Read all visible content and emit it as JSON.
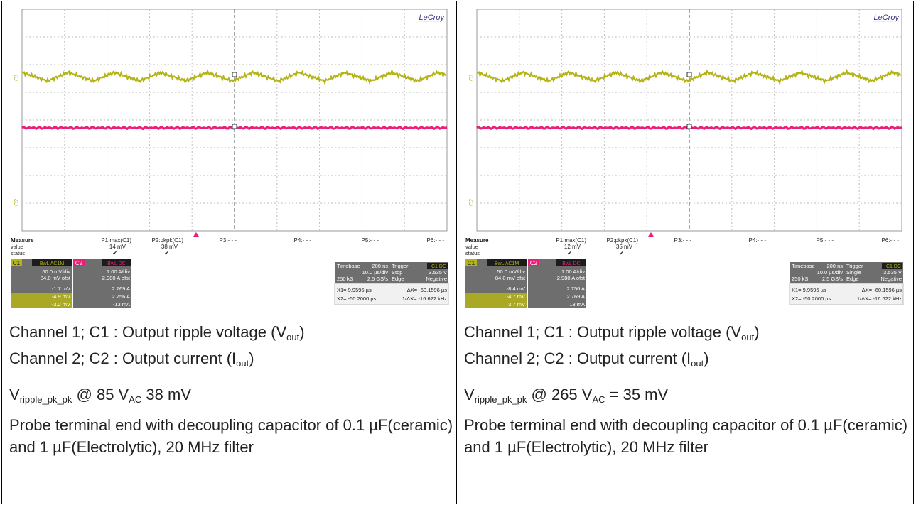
{
  "colors": {
    "ch1_trace": "#b4b419",
    "ch2_trace": "#e8207a",
    "grid": "#bdbdbd",
    "panel_dark": "#3c3c3c",
    "panel_mid": "#6e6e6e"
  },
  "scopes": [
    {
      "brand": "LeCroy",
      "measure": {
        "header": "Measure",
        "rows": [
          "value",
          "status"
        ],
        "params": [
          {
            "label": "P1:max(C1)",
            "value": "14 mV",
            "status": "✔"
          },
          {
            "label": "P2:pkpk(C1)",
            "value": "38 mV",
            "status": "✔"
          },
          {
            "label": "P3:- - -",
            "value": "",
            "status": ""
          },
          {
            "label": "P4:- - -",
            "value": "",
            "status": ""
          },
          {
            "label": "P5:- - -",
            "value": "",
            "status": ""
          },
          {
            "label": "P6:- - -",
            "value": "",
            "status": ""
          }
        ]
      },
      "c1": {
        "tag": "C1",
        "mode": "BwL AC1M",
        "vdiv": "50.0 mV/div",
        "ofst": "84.0 mV ofst",
        "v1": "-1.7 mV",
        "v2": "-4.9 mV",
        "dy": "-3.2 mV"
      },
      "c2": {
        "tag": "C2",
        "mode": "BwL DC",
        "vdiv": "1.00 A/div",
        "ofst": "-2.980 A ofst",
        "v1": "2.769 A",
        "v2": "2.756 A",
        "dy": "-13 mA"
      },
      "timebase": {
        "label": "Timebase",
        "value": "200 ns",
        "tdiv": "10.0 µs/div",
        "samples": "250 kS",
        "rate": "2.5 GS/s"
      },
      "trigger": {
        "label": "Trigger",
        "src": "C1 DC",
        "mode": "Stop",
        "level": "3.535 V",
        "type": "Edge",
        "slope": "Negative"
      },
      "cursors": {
        "x1": "X1=   9.9596 µs",
        "x2": "X2=  -50.2000 µs",
        "dx": "ΔX=  -60.1596 µs",
        "inv": "1/ΔX=  -16.622 kHz"
      }
    },
    {
      "brand": "LeCroy",
      "measure": {
        "header": "Measure",
        "rows": [
          "value",
          "status"
        ],
        "params": [
          {
            "label": "P1:max(C1)",
            "value": "12 mV",
            "status": "✔"
          },
          {
            "label": "P2:pkpk(C1)",
            "value": "35 mV",
            "status": "✔"
          },
          {
            "label": "P3:- - -",
            "value": "",
            "status": ""
          },
          {
            "label": "P4:- - -",
            "value": "",
            "status": ""
          },
          {
            "label": "P5:- - -",
            "value": "",
            "status": ""
          },
          {
            "label": "P6:- - -",
            "value": "",
            "status": ""
          }
        ]
      },
      "c1": {
        "tag": "C1",
        "mode": "BwL AC1M",
        "vdiv": "50.0 mV/div",
        "ofst": "84.0 mV ofst",
        "v1": "-8.4 mV",
        "v2": "-4.7 mV",
        "dy": "3.7 mV"
      },
      "c2": {
        "tag": "C2",
        "mode": "BwL DC",
        "vdiv": "1.00 A/div",
        "ofst": "-2.980 A ofst",
        "v1": "2.756 A",
        "v2": "2.769 A",
        "dy": "13 mA"
      },
      "timebase": {
        "label": "Timebase",
        "value": "200 ns",
        "tdiv": "10.0 µs/div",
        "samples": "250 kS",
        "rate": "2.5 GS/s"
      },
      "trigger": {
        "label": "Trigger",
        "src": "C1 DC",
        "mode": "Single",
        "level": "3.535 V",
        "type": "Edge",
        "slope": "Negative"
      },
      "cursors": {
        "x1": "X1=   9.9596 µs",
        "x2": "X2=  -50.2000 µs",
        "dx": "ΔX=  -60.1596 µs",
        "inv": "1/ΔX=  -16.622 kHz"
      }
    }
  ],
  "captions": [
    {
      "line1": {
        "pre": "Channel 1; C1 : Output ripple voltage (V",
        "sub": "out",
        "post": ")"
      },
      "line2": {
        "pre": "Channel 2; C2 : Output current (I",
        "sub": "out",
        "post": ")"
      }
    },
    {
      "line1": {
        "pre": "Channel 1; C1 : Output ripple voltage (V",
        "sub": "out",
        "post": ")"
      },
      "line2": {
        "pre": "Channel 2; C2 : Output current (I",
        "sub": "out",
        "post": ")"
      }
    }
  ],
  "notes": [
    {
      "v": "V",
      "v_sub": "ripple_pk_pk",
      "mid": " @ 85 V",
      "ac_sub": "AC",
      "post": " 38 mV",
      "probe": "Probe terminal end with decoupling capacitor of 0.1 µF(ceramic) and 1 µF(Electrolytic), 20 MHz filter"
    },
    {
      "v": "V",
      "v_sub": "ripple_pk_pk",
      "mid": " @ 265 V",
      "ac_sub": "AC",
      "post": " = 35 mV",
      "probe": "Probe terminal end with decoupling capacitor of 0.1 µF(ceramic) and 1 µF(Electrolytic), 20 MHz filter"
    }
  ]
}
